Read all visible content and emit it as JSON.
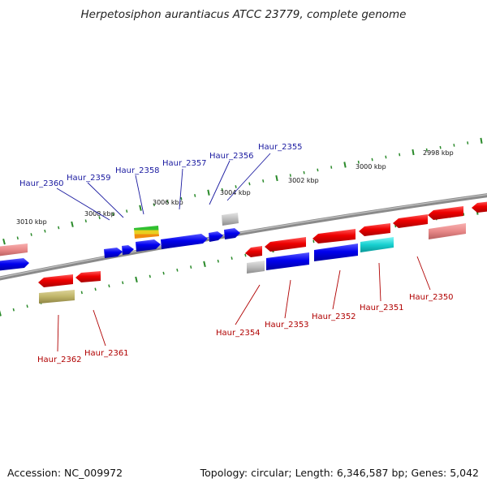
{
  "title": "Herpetosiphon aurantiacus ATCC 23779, complete genome",
  "footer": {
    "accession": "Accession: NC_009972",
    "topology": "Topology: circular; Length: 6,346,587 bp; Genes: 5,042"
  },
  "colors": {
    "backbone": "#8a8a8a",
    "ticks": "#2a8a2a",
    "forward_label": "#1a1aa0",
    "reverse_label": "#b00000"
  },
  "scale_labels": [
    "3010 kbp",
    "3008 kbp",
    "3006 kbp",
    "3004 kbp",
    "3002 kbp",
    "3000 kbp",
    "2998 kbp"
  ],
  "forward_labels": [
    "Haur_2360",
    "Haur_2359",
    "Haur_2358",
    "Haur_2357",
    "Haur_2356",
    "Haur_2355"
  ],
  "reverse_labels": [
    "Haur_2362",
    "Haur_2361",
    "Haur_2354",
    "Haur_2353",
    "Haur_2352",
    "Haur_2351",
    "Haur_2350"
  ]
}
